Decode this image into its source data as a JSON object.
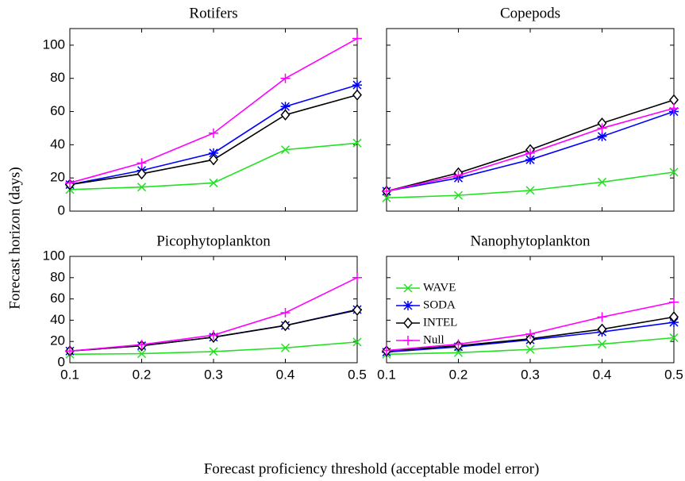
{
  "ylabel": "Forecast horizon (days)",
  "xlabel": "Forecast proficiency threshold (acceptable model error)",
  "chart_data": [
    {
      "type": "line",
      "title": "Rotifers",
      "x": [
        0.1,
        0.2,
        0.3,
        0.4,
        0.5
      ],
      "xlim": [
        0.1,
        0.5
      ],
      "xticks": [
        0.1,
        0.2,
        0.3,
        0.4,
        0.5
      ],
      "show_xtick_labels": false,
      "ylim": [
        0,
        110
      ],
      "yticks": [
        0,
        20,
        40,
        60,
        80,
        100
      ],
      "show_ytick_labels": true,
      "series": [
        {
          "color": "#22e022",
          "marker": "x",
          "values": [
            13,
            14.5,
            17,
            37,
            41
          ]
        },
        {
          "color": "#0000ff",
          "marker": "asterisk",
          "values": [
            16,
            24.5,
            35,
            63,
            76
          ]
        },
        {
          "color": "#000000",
          "marker": "diamond",
          "values": [
            16,
            22.5,
            31,
            58,
            70
          ]
        },
        {
          "color": "#ff00ff",
          "marker": "plus",
          "values": [
            17,
            29,
            47,
            80,
            104
          ]
        }
      ]
    },
    {
      "type": "line",
      "title": "Copepods",
      "x": [
        0.1,
        0.2,
        0.3,
        0.4,
        0.5
      ],
      "xlim": [
        0.1,
        0.5
      ],
      "xticks": [
        0.1,
        0.2,
        0.3,
        0.4,
        0.5
      ],
      "show_xtick_labels": false,
      "ylim": [
        0,
        110
      ],
      "yticks": [
        0,
        20,
        40,
        60,
        80,
        100
      ],
      "show_ytick_labels": false,
      "series": [
        {
          "color": "#22e022",
          "marker": "x",
          "values": [
            8,
            9.5,
            12.5,
            17.5,
            23.5
          ]
        },
        {
          "color": "#0000ff",
          "marker": "asterisk",
          "values": [
            12,
            20,
            31,
            45,
            60
          ]
        },
        {
          "color": "#000000",
          "marker": "diamond",
          "values": [
            12,
            23,
            37,
            53,
            67
          ]
        },
        {
          "color": "#ff00ff",
          "marker": "plus",
          "values": [
            12,
            21.5,
            35,
            50,
            62
          ]
        }
      ]
    },
    {
      "type": "line",
      "title": "Picophytoplankton",
      "x": [
        0.1,
        0.2,
        0.3,
        0.4,
        0.5
      ],
      "xlim": [
        0.1,
        0.5
      ],
      "xticks": [
        0.1,
        0.2,
        0.3,
        0.4,
        0.5
      ],
      "show_xtick_labels": true,
      "ylim": [
        0,
        100
      ],
      "yticks": [
        0,
        20,
        40,
        60,
        80,
        100
      ],
      "show_ytick_labels": true,
      "series": [
        {
          "color": "#22e022",
          "marker": "x",
          "values": [
            8,
            8.5,
            10.5,
            14,
            19.5
          ]
        },
        {
          "color": "#0000ff",
          "marker": "asterisk",
          "values": [
            11,
            16,
            24,
            35,
            50
          ]
        },
        {
          "color": "#000000",
          "marker": "diamond",
          "values": [
            11,
            16,
            24,
            35,
            49.5
          ]
        },
        {
          "color": "#ff00ff",
          "marker": "plus",
          "values": [
            11,
            17,
            26,
            47,
            80
          ]
        }
      ]
    },
    {
      "type": "line",
      "title": "Nanophytoplankton",
      "x": [
        0.1,
        0.2,
        0.3,
        0.4,
        0.5
      ],
      "xlim": [
        0.1,
        0.5
      ],
      "xticks": [
        0.1,
        0.2,
        0.3,
        0.4,
        0.5
      ],
      "show_xtick_labels": true,
      "ylim": [
        0,
        100
      ],
      "yticks": [
        0,
        20,
        40,
        60,
        80,
        100
      ],
      "show_ytick_labels": false,
      "legend": "upper left",
      "series": [
        {
          "name": "WAVE",
          "color": "#22e022",
          "marker": "x",
          "values": [
            8,
            9.5,
            12.5,
            17.5,
            23.5
          ]
        },
        {
          "name": "SODA",
          "color": "#0000ff",
          "marker": "asterisk",
          "values": [
            10,
            15,
            21.5,
            29,
            38
          ]
        },
        {
          "name": "INTEL",
          "color": "#000000",
          "marker": "diamond",
          "values": [
            11,
            16,
            22.5,
            31.5,
            43
          ]
        },
        {
          "name": "Null",
          "color": "#ff00ff",
          "marker": "plus",
          "values": [
            11.5,
            17.5,
            27,
            43,
            57
          ]
        }
      ]
    }
  ]
}
